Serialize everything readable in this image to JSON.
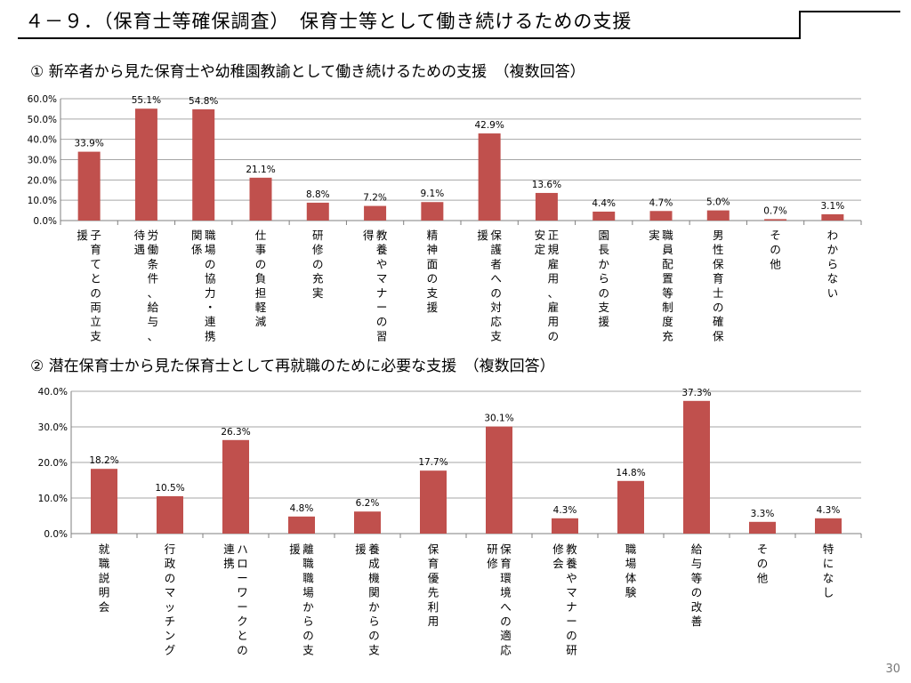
{
  "slide": {
    "title": "４－９．（保育士等確保調査）　保育士等として働き続けるための支援",
    "page_number": "30"
  },
  "colors": {
    "bar": "#c0504d",
    "grid": "#a6a6a6",
    "axis": "#7f7f7f"
  },
  "chart_data": [
    {
      "heading": "① 新卒者から見た保育士や幼稚園教諭として働き続けるための支援　（複数回答）",
      "type": "bar",
      "categories": [
        "子育てとの両立支援",
        "労働条件、給与、待遇",
        "職場の協力・連携関係",
        "仕事の負担軽減",
        "研修の充実",
        "教養やマナーの習得",
        "精神面の支援",
        "保護者への対応支援",
        "正規雇用、雇用の安定",
        "園長からの支援",
        "職員配置等制度充実",
        "男性保育士の確保",
        "その他",
        "わからない"
      ],
      "values": [
        33.9,
        55.1,
        54.8,
        21.1,
        8.8,
        7.2,
        9.1,
        42.9,
        13.6,
        4.4,
        4.7,
        5.0,
        0.7,
        3.1
      ],
      "value_labels": [
        "33.9%",
        "55.1%",
        "54.8%",
        "21.1%",
        "8.8%",
        "7.2%",
        "9.1%",
        "42.9%",
        "13.6%",
        "4.4%",
        "4.7%",
        "5.0%",
        "0.7%",
        "3.1%"
      ],
      "ylim": [
        0,
        60
      ],
      "yticks": [
        0,
        10,
        20,
        30,
        40,
        50,
        60
      ],
      "ytick_labels": [
        "0.0%",
        "10.0%",
        "20.0%",
        "30.0%",
        "40.0%",
        "50.0%",
        "60.0%"
      ],
      "grid": true
    },
    {
      "heading": "② 潜在保育士から見た保育士として再就職のために必要な支援　（複数回答）",
      "type": "bar",
      "categories": [
        "就職説明会",
        "行政のマッチング",
        "ハローワークとの連携",
        "離職職場からの支援",
        "養成機関からの支援",
        "保育優先利用",
        "保育環境への適応研修",
        "教養やマナーの研修会",
        "職場体験",
        "給与等の改善",
        "その他",
        "特になし"
      ],
      "values": [
        18.2,
        10.5,
        26.3,
        4.8,
        6.2,
        17.7,
        30.1,
        4.3,
        14.8,
        37.3,
        3.3,
        4.3
      ],
      "value_labels": [
        "18.2%",
        "10.5%",
        "26.3%",
        "4.8%",
        "6.2%",
        "17.7%",
        "30.1%",
        "4.3%",
        "14.8%",
        "37.3%",
        "3.3%",
        "4.3%"
      ],
      "ylim": [
        0,
        40
      ],
      "yticks": [
        0,
        10,
        20,
        30,
        40
      ],
      "ytick_labels": [
        "0.0%",
        "10.0%",
        "20.0%",
        "30.0%",
        "40.0%"
      ],
      "grid": true
    }
  ]
}
